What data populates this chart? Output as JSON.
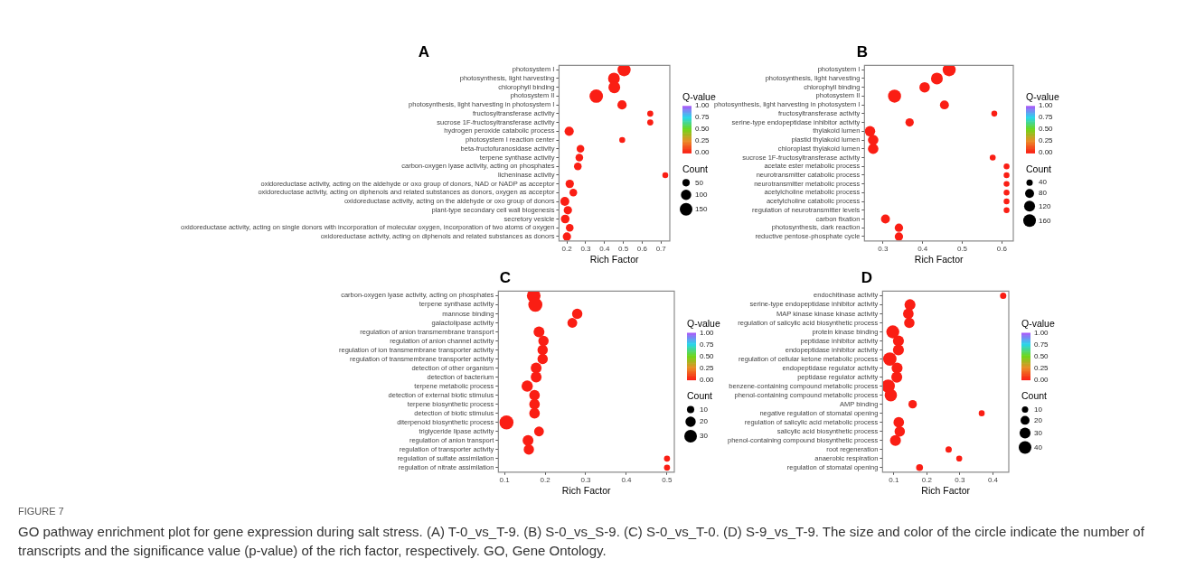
{
  "chart_data": [
    {
      "type": "bubble",
      "title": "A",
      "xlabel": "Rich Factor",
      "orientation": "horizontal",
      "clabel": "Q-value",
      "legend_title": "Count",
      "clim": [
        0,
        1
      ],
      "cticks": [
        {
          "value": 0,
          "label": "0.00"
        },
        {
          "value": 0.25,
          "label": "0.25"
        },
        {
          "value": 0.5,
          "label": "0.50"
        },
        {
          "value": 0.75,
          "label": "0.75"
        },
        {
          "value": 1,
          "label": "1.00"
        }
      ],
      "size_legend": [
        50,
        100,
        150
      ],
      "xlim": [
        0.158,
        0.747
      ],
      "xticks": [
        0.2,
        0.3,
        0.4,
        0.5,
        0.6,
        0.7
      ],
      "categories": [
        "photosystem I",
        "photosynthesis, light harvesting",
        "chlorophyll binding",
        "photosystem II",
        "photosynthesis, light harvesting in photosystem I",
        "fructosyltransferase activity",
        "sucrose 1F-fructosyltransferase activity",
        "hydrogen peroxide catabolic process",
        "photosystem I reaction center",
        "beta-fructofuranosidase activity",
        "terpene synthase activity",
        "carbon-oxygen lyase activity, acting on phosphates",
        "licheninase activity",
        "oxidoreductase activity, acting on the aldehyde or oxo group of donors, NAD or NADP as acceptor",
        "oxidoreductase activity, acting on diphenols and related substances as donors, oxygen as acceptor",
        "oxidoreductase activity, acting on the aldehyde or oxo group of donors",
        "plant-type secondary cell wall biogenesis",
        "secretory vesicle",
        "oxidoreductase activity, acting on single donors with incorporation of molecular oxygen, incorporation of two atoms of oxygen",
        "oxidoreductase activity, acting on diphenols and related substances as donors"
      ],
      "values": [
        0.504,
        0.45,
        0.452,
        0.356,
        0.493,
        0.643,
        0.643,
        0.212,
        0.494,
        0.272,
        0.266,
        0.258,
        0.723,
        0.215,
        0.234,
        0.189,
        0.205,
        0.191,
        0.215,
        0.2
      ],
      "sizes": [
        160,
        130,
        130,
        170,
        80,
        35,
        35,
        80,
        33,
        55,
        55,
        55,
        32,
        65,
        55,
        75,
        65,
        70,
        55,
        65
      ],
      "cvalues": [
        0,
        0,
        0,
        0,
        0,
        0,
        0,
        0,
        0,
        0,
        0,
        0,
        0,
        0,
        0,
        0,
        0,
        0,
        0,
        0
      ],
      "annotations": [
        "FIGURE 7",
        "GO pathway enrichment plot for gene expression during salt stress. (A) T-0_vs_T-9. (B) S-0_vs_S-9. (C) S-0_vs_T-0. (D) S-9_vs_T-9. The size and color of the circle indicate the number of transcripts and the significance value (p-value) of the rich factor, respectively. GO, Gene Ontology."
      ]
    },
    {
      "type": "bubble",
      "title": "B",
      "xlabel": "Rich Factor",
      "orientation": "horizontal",
      "clabel": "Q-value",
      "legend_title": "Count",
      "clim": [
        0,
        1
      ],
      "cticks": [
        {
          "value": 0,
          "label": "0.00"
        },
        {
          "value": 0.25,
          "label": "0.25"
        },
        {
          "value": 0.5,
          "label": "0.50"
        },
        {
          "value": 0.75,
          "label": "0.75"
        },
        {
          "value": 1,
          "label": "1.00"
        }
      ],
      "size_legend": [
        40,
        80,
        120,
        160
      ],
      "xlim": [
        0.253,
        0.629
      ],
      "xticks": [
        0.3,
        0.4,
        0.5,
        0.6
      ],
      "categories": [
        "photosystem I",
        "photosynthesis, light harvesting",
        "chlorophyll binding",
        "photosystem II",
        "photosynthesis, light harvesting in photosystem I",
        "fructosyltransferase activity",
        "serine-type endopeptidase inhibitor activity",
        "thylakoid lumen",
        "plastid thylakoid lumen",
        "chloroplast thylakoid lumen",
        "sucrose 1F-fructosyltransferase activity",
        "acetate ester metabolic process",
        "neurotransmitter catabolic process",
        "neurotransmitter metabolic process",
        "acetylcholine metabolic process",
        "acetylcholine catabolic process",
        "regulation of neurotransmitter levels",
        "carbon fixation",
        "photosynthesis, dark reaction",
        "reductive pentose-phosphate cycle"
      ],
      "values": [
        0.467,
        0.436,
        0.405,
        0.329,
        0.455,
        0.581,
        0.367,
        0.267,
        0.275,
        0.275,
        0.577,
        0.612,
        0.612,
        0.612,
        0.612,
        0.612,
        0.612,
        0.306,
        0.34,
        0.34
      ],
      "sizes": [
        170,
        140,
        110,
        170,
        80,
        35,
        70,
        110,
        110,
        110,
        35,
        34,
        34,
        34,
        34,
        34,
        34,
        80,
        70,
        70
      ],
      "cvalues": [
        0,
        0,
        0,
        0,
        0,
        0,
        0,
        0,
        0,
        0,
        0,
        0,
        0,
        0,
        0,
        0,
        0,
        0,
        0,
        0
      ]
    },
    {
      "type": "bubble",
      "title": "C",
      "xlabel": "Rich Factor",
      "orientation": "horizontal",
      "clabel": "Q-value",
      "legend_title": "Count",
      "clim": [
        0,
        1
      ],
      "cticks": [
        {
          "value": 0,
          "label": "0.00"
        },
        {
          "value": 0.25,
          "label": "0.25"
        },
        {
          "value": 0.5,
          "label": "0.50"
        },
        {
          "value": 0.75,
          "label": "0.75"
        },
        {
          "value": 1,
          "label": "1.00"
        }
      ],
      "size_legend": [
        10,
        20,
        30
      ],
      "xlim": [
        0.085,
        0.518
      ],
      "xticks": [
        0.1,
        0.2,
        0.3,
        0.4,
        0.5
      ],
      "categories": [
        "carbon-oxygen lyase activity, acting on phosphates",
        "terpene synthase activity",
        "mannose binding",
        "galactolipase activity",
        "regulation of anion transmembrane transport",
        "regulation of anion channel activity",
        "regulation of ion transmembrane transporter activity",
        "regulation of transmembrane transporter activity",
        "detection of other organism",
        "detection of bacterium",
        "terpene metabolic process",
        "detection of external biotic stimulus",
        "terpene biosynthetic process",
        "detection of biotic stimulus",
        "diterpenoid biosynthetic process",
        "triglyceride lipase activity",
        "regulation of anion transport",
        "regulation of transporter activity",
        "regulation of sulfate assimilation",
        "regulation of nitrate assimilation"
      ],
      "values": [
        0.172,
        0.176,
        0.279,
        0.267,
        0.185,
        0.196,
        0.194,
        0.194,
        0.178,
        0.178,
        0.156,
        0.174,
        0.174,
        0.174,
        0.105,
        0.185,
        0.158,
        0.16,
        0.5,
        0.5
      ],
      "sizes": [
        35,
        37,
        20,
        18,
        22,
        20,
        20,
        20,
        22,
        22,
        24,
        21,
        21,
        21,
        37,
        18,
        22,
        20,
        7,
        7
      ],
      "cvalues": [
        0,
        0,
        0,
        0,
        0,
        0,
        0,
        0,
        0,
        0,
        0,
        0,
        0,
        0,
        0,
        0,
        0,
        0,
        0,
        0
      ]
    },
    {
      "type": "bubble",
      "title": "D",
      "xlabel": "Rich Factor",
      "orientation": "horizontal",
      "clabel": "Q-value",
      "legend_title": "Count",
      "clim": [
        0,
        1
      ],
      "cticks": [
        {
          "value": 0,
          "label": "0.00"
        },
        {
          "value": 0.25,
          "label": "0.25"
        },
        {
          "value": 0.5,
          "label": "0.50"
        },
        {
          "value": 0.75,
          "label": "0.75"
        },
        {
          "value": 1,
          "label": "1.00"
        }
      ],
      "size_legend": [
        10,
        20,
        30,
        40
      ],
      "xlim": [
        0.066,
        0.448
      ],
      "xticks": [
        0.1,
        0.2,
        0.3,
        0.4
      ],
      "categories": [
        "endochitinase activity",
        "serine-type endopeptidase inhibitor activity",
        "MAP kinase kinase kinase activity",
        "regulation of salicylic acid biosynthetic process",
        "protein kinase binding",
        "peptidase inhibitor activity",
        "endopeptidase inhibitor activity",
        "regulation of cellular ketone metabolic process",
        "endopeptidase regulator activity",
        "peptidase regulator activity",
        "benzene-containing compound metabolic process",
        "phenol-containing compound metabolic process",
        "AMP binding",
        "negative regulation of stomatal opening",
        "regulation of salicylic acid metabolic process",
        "salicylic acid biosynthetic process",
        "phenol-containing compound biosynthetic process",
        "root regeneration",
        "anaerobic respiration",
        "regulation of stomatal opening"
      ],
      "values": [
        0.431,
        0.149,
        0.144,
        0.147,
        0.097,
        0.114,
        0.114,
        0.088,
        0.11,
        0.109,
        0.083,
        0.091,
        0.157,
        0.366,
        0.115,
        0.118,
        0.105,
        0.266,
        0.298,
        0.178
      ],
      "sizes": [
        10,
        30,
        28,
        27,
        42,
        30,
        30,
        45,
        30,
        30,
        45,
        38,
        18,
        9,
        28,
        27,
        30,
        10,
        9,
        12
      ],
      "cvalues": [
        0,
        0,
        0,
        0,
        0,
        0,
        0,
        0,
        0,
        0,
        0,
        0,
        0,
        0,
        0,
        0,
        0,
        0,
        0,
        0
      ]
    }
  ]
}
